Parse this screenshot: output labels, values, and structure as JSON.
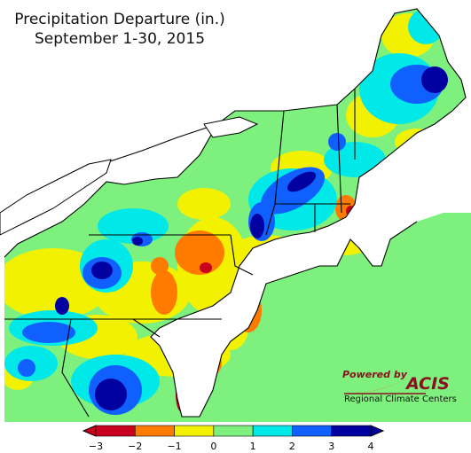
{
  "map": {
    "title": "Precipitation Departure (in.)",
    "subtitle": "September 1-30, 2015"
  },
  "branding": {
    "powered_by": "Powered by",
    "acis": "ACIS",
    "rcc": "Regional Climate Centers"
  },
  "legend": {
    "ticks": [
      "−3",
      "−2",
      "−1",
      "0",
      "1",
      "2",
      "3",
      "4"
    ],
    "bins": [
      {
        "from": -3,
        "to": -2,
        "color": "#c8001e"
      },
      {
        "from": -2,
        "to": -1,
        "color": "#ff7b00"
      },
      {
        "from": -1,
        "to": 0,
        "color": "#f2f200"
      },
      {
        "from": 0,
        "to": 1,
        "color": "#7df07d"
      },
      {
        "from": 1,
        "to": 2,
        "color": "#00e8e8"
      },
      {
        "from": 2,
        "to": 3,
        "color": "#1060ff"
      },
      {
        "from": 3,
        "to": 4,
        "color": "#0000a0"
      }
    ]
  }
}
